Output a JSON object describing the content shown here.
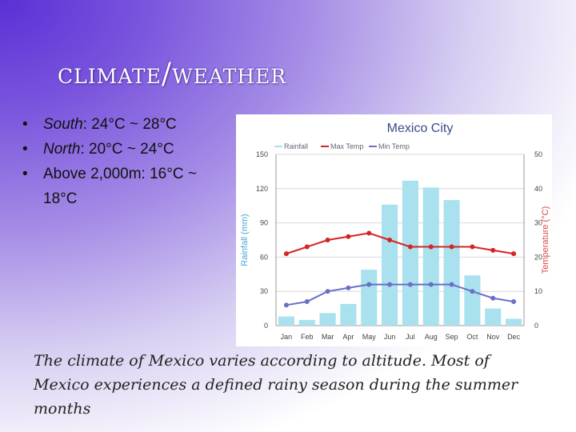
{
  "slide": {
    "title": "climate/weather",
    "bullets": [
      {
        "region": "South",
        "rest": ": 24°C ~ 28°C",
        "cont": ""
      },
      {
        "region": "North",
        "rest": ": 20°C ~ 24°C",
        "cont": ""
      },
      {
        "region": "",
        "rest": "Above 2,000m: 16°C ~",
        "cont": "18°C"
      }
    ],
    "caption": "The climate of Mexico varies according to altitude. Most of Mexico experiences a defined rainy season during the summer months"
  },
  "colors": {
    "bar": "#a9e2ee",
    "max_temp": "#d42424",
    "min_temp": "#6a6ec8",
    "rain_axis": "#4aa6d8",
    "temp_axis": "#d84a4a"
  },
  "chart_data": {
    "type": "bar",
    "title": "Mexico City",
    "ylabel": "Rainfall (mm)",
    "y2label": "Temperature (°C)",
    "categories": [
      "Jan",
      "Feb",
      "Mar",
      "Apr",
      "May",
      "Jun",
      "Jul",
      "Aug",
      "Sep",
      "Oct",
      "Nov",
      "Dec"
    ],
    "ylim": [
      0,
      150
    ],
    "y2lim": [
      0,
      50
    ],
    "yticks": [
      "0",
      "30",
      "60",
      "90",
      "120",
      "150"
    ],
    "y2ticks": [
      "0",
      "10",
      "20",
      "30",
      "40",
      "50"
    ],
    "legend_position": "top",
    "series": [
      {
        "name": "Rainfall",
        "kind": "bar",
        "axis": "left",
        "values": [
          8,
          5,
          11,
          19,
          49,
          106,
          127,
          121,
          110,
          44,
          15,
          6
        ]
      },
      {
        "name": "Max Temp",
        "kind": "line",
        "axis": "right",
        "values": [
          21,
          23,
          25,
          26,
          27,
          25,
          23,
          23,
          23,
          23,
          22,
          21
        ]
      },
      {
        "name": "Min Temp",
        "kind": "line",
        "axis": "right",
        "values": [
          6,
          7,
          10,
          11,
          12,
          12,
          12,
          12,
          12,
          10,
          8,
          7
        ]
      }
    ]
  }
}
